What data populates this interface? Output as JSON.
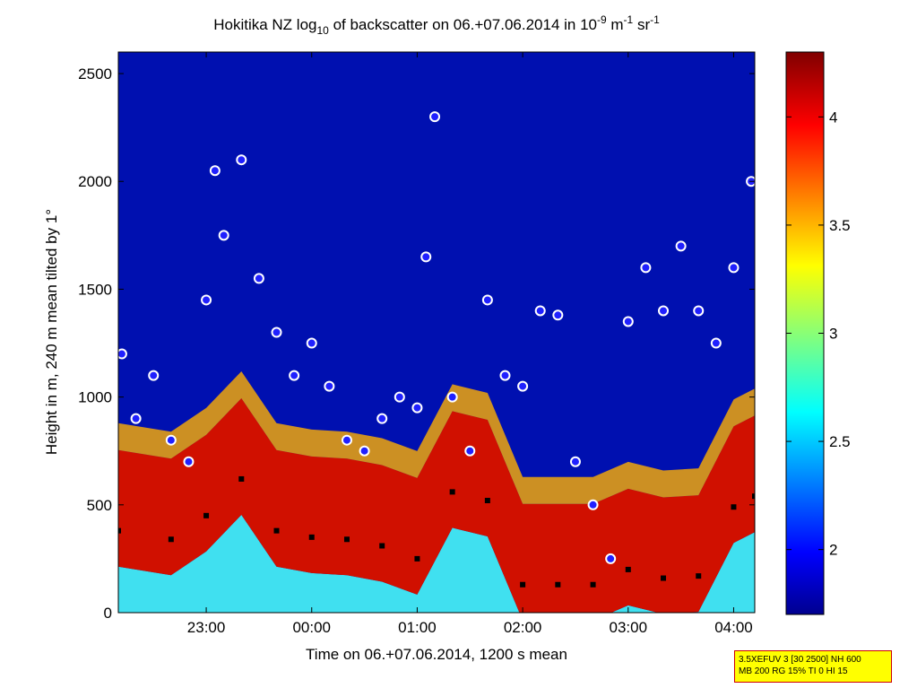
{
  "chart_data": {
    "type": "heatmap",
    "title_parts": {
      "a": "Hokitika NZ log",
      "sub": "10",
      "b": " of backscatter on 06.+07.06.2014 in 10",
      "sup1": "-9",
      "c": " m",
      "sup2": "-1",
      "d": " sr",
      "sup3": "-1"
    },
    "xlabel": "Time on 06.+07.06.2014, 1200 s mean",
    "ylabel": "Height in m, 240 m mean tilted by 1°",
    "x_range": [
      "22:10",
      "04:12"
    ],
    "x_ticks": [
      "23:00",
      "00:00",
      "01:00",
      "02:00",
      "03:00",
      "04:00"
    ],
    "ylim": [
      0,
      2600
    ],
    "y_ticks": [
      "0",
      "500",
      "1000",
      "1500",
      "2000",
      "2500"
    ],
    "colorbar": {
      "range": [
        1.7,
        4.3
      ],
      "ticks": [
        "2",
        "2.5",
        "3",
        "3.5",
        "4"
      ],
      "colormap": "jet"
    },
    "layers": [
      {
        "name": "",
        "description_hidden": true,
        "x": [
          "22:10",
          "22:40",
          "23:00",
          "23:20",
          "23:40",
          "00:00",
          "00:20",
          "00:40",
          "01:00",
          "01:20",
          "01:40",
          "02:00",
          "02:20",
          "02:40",
          "03:00",
          "03:20",
          "03:40",
          "04:00",
          "04:12"
        ],
        "y": [
          380,
          340,
          450,
          620,
          380,
          350,
          340,
          310,
          250,
          560,
          520,
          130,
          130,
          130,
          200,
          160,
          170,
          490,
          540
        ]
      }
    ],
    "cloud_base_points": {
      "x": [
        "22:12",
        "22:20",
        "22:30",
        "22:40",
        "22:50",
        "23:00",
        "23:05",
        "23:10",
        "23:20",
        "23:30",
        "23:40",
        "23:50",
        "00:00",
        "00:10",
        "00:20",
        "00:30",
        "00:40",
        "00:50",
        "01:00",
        "01:05",
        "01:10",
        "01:20",
        "01:30",
        "01:40",
        "01:50",
        "02:00",
        "02:10",
        "02:20",
        "02:30",
        "02:40",
        "02:50",
        "03:00",
        "03:10",
        "03:20",
        "03:30",
        "03:40",
        "03:50",
        "04:00",
        "04:10"
      ],
      "y": [
        1200,
        900,
        1100,
        800,
        700,
        1450,
        2050,
        1750,
        2100,
        1550,
        1300,
        1100,
        1250,
        1050,
        800,
        750,
        900,
        1000,
        950,
        1650,
        2300,
        1000,
        750,
        1450,
        1100,
        1050,
        1400,
        1380,
        700,
        500,
        250,
        1350,
        1600,
        1400,
        1700,
        1400,
        1250,
        1600,
        2000
      ]
    }
  },
  "info_box": {
    "line1": "3.5XEFUV 3 [30 2500] NH 600",
    "line2": "MB 200 RG 15% TI 0 HI 15"
  }
}
